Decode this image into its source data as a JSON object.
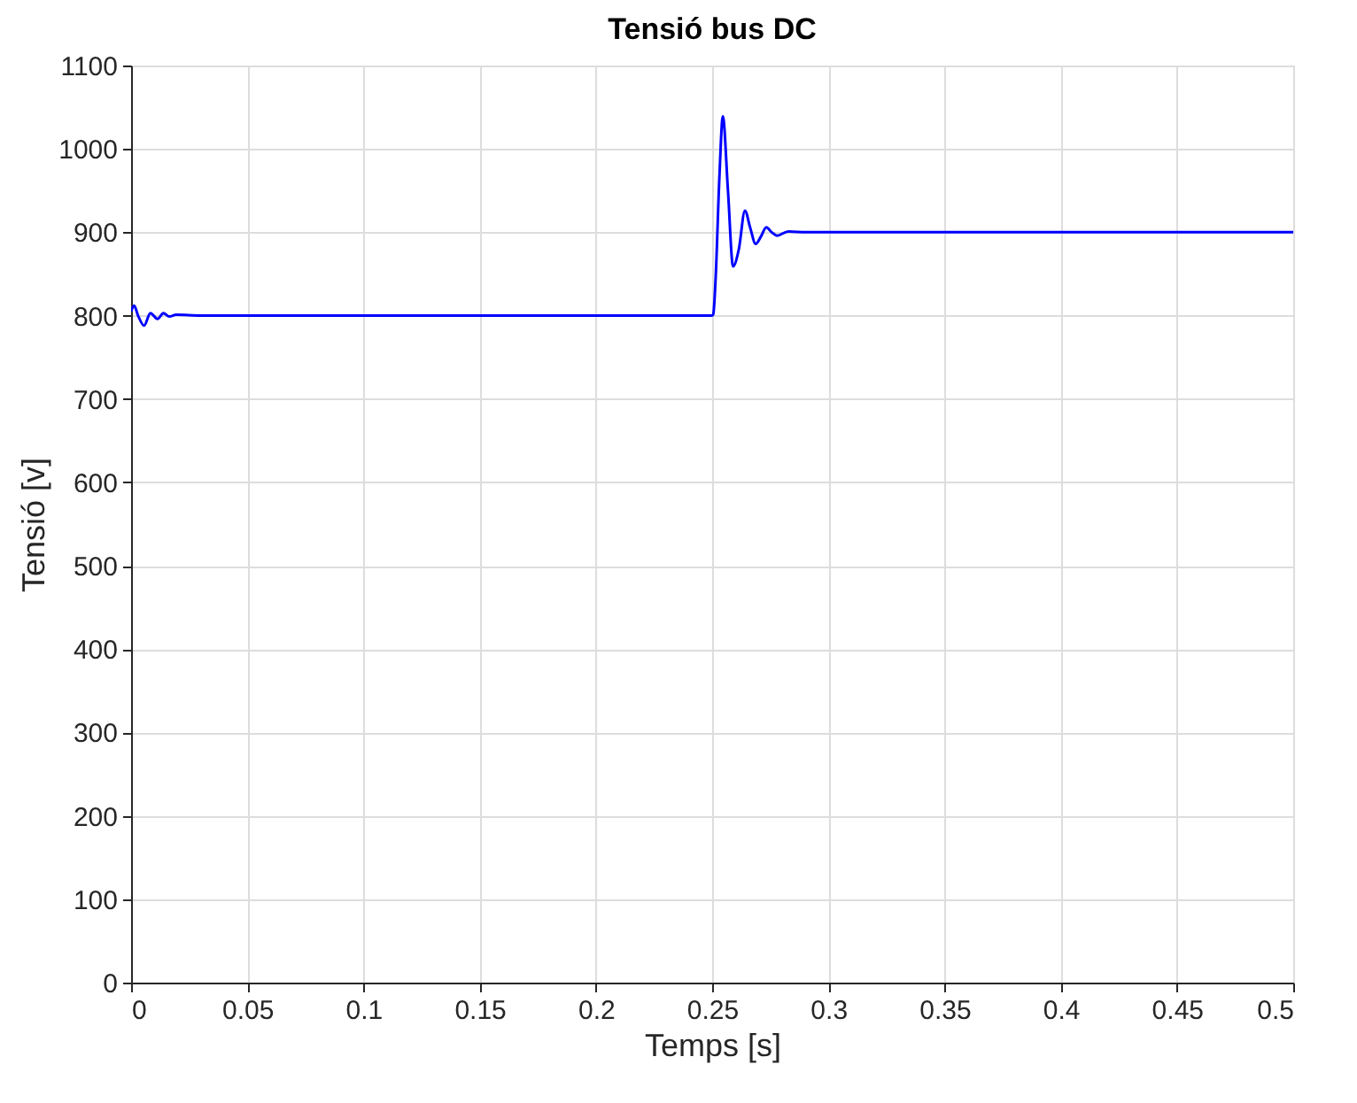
{
  "chart_data": {
    "type": "line",
    "title": "Tensió bus DC",
    "xlabel": "Temps [s]",
    "ylabel": "Tensió [v]",
    "x": [
      0,
      0.0013,
      0.003,
      0.0056,
      0.0083,
      0.0114,
      0.0139,
      0.0164,
      0.0194,
      0.03,
      0.25,
      0.2505,
      0.2515,
      0.2531,
      0.2546,
      0.2568,
      0.259,
      0.2615,
      0.2641,
      0.2664,
      0.2687,
      0.271,
      0.2733,
      0.2756,
      0.2779,
      0.2828,
      0.2905,
      0.5
    ],
    "series": [
      {
        "color": "#0000ff",
        "values": [
          805,
          812,
          800,
          788,
          803,
          796,
          803,
          799,
          801,
          800,
          800,
          802,
          845,
          965,
          1039,
          950,
          859,
          880,
          926,
          905,
          886,
          895,
          906,
          900,
          896,
          901,
          900,
          900
        ]
      }
    ],
    "xlim": [
      0,
      0.5
    ],
    "ylim": [
      0,
      1100
    ],
    "xticks": [
      0,
      0.05,
      0.1,
      0.15,
      0.2,
      0.25,
      0.3,
      0.35,
      0.4,
      0.45,
      0.5
    ],
    "yticks": [
      0,
      100,
      200,
      300,
      400,
      500,
      600,
      700,
      800,
      900,
      1000,
      1100
    ],
    "grid": true,
    "marker": "none",
    "line_style": "solid"
  }
}
